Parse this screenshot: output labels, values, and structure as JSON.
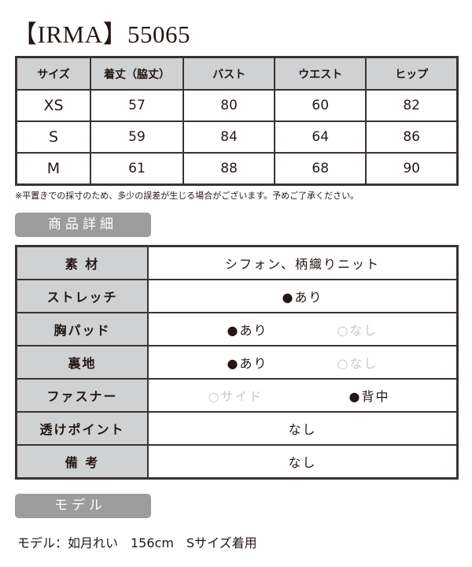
{
  "title": "【IRMA】55065",
  "size_table": {
    "headers": [
      "サイズ",
      "着丈（脇丈）",
      "バスト",
      "ウエスト",
      "ヒップ"
    ],
    "rows": [
      [
        "XS",
        "57",
        "80",
        "60",
        "82"
      ],
      [
        "S",
        "59",
        "84",
        "64",
        "86"
      ],
      [
        "M",
        "61",
        "88",
        "68",
        "90"
      ]
    ]
  },
  "note": "※平置きでの採寸のため、多少の誤差が生じる場合がございます。予めご了承ください。",
  "details_badge": "商品詳細",
  "details": {
    "material": {
      "label": "素 材",
      "value": "シフォン、柄織りニット"
    },
    "stretch": {
      "label": "ストレッチ",
      "value": "●あり"
    },
    "pad": {
      "label": "胸パッド",
      "on": "●あり",
      "off": "○なし"
    },
    "lining": {
      "label": "裏地",
      "on": "●あり",
      "off": "○なし"
    },
    "fastener": {
      "label": "ファスナー",
      "off": "○サイド",
      "on": "●背中"
    },
    "sheer": {
      "label": "透けポイント",
      "value": "なし"
    },
    "remarks": {
      "label": "備 考",
      "value": "なし"
    }
  },
  "model_badge": "モデル",
  "model_text": "モデル：如月れい　156cm　Sサイズ着用"
}
